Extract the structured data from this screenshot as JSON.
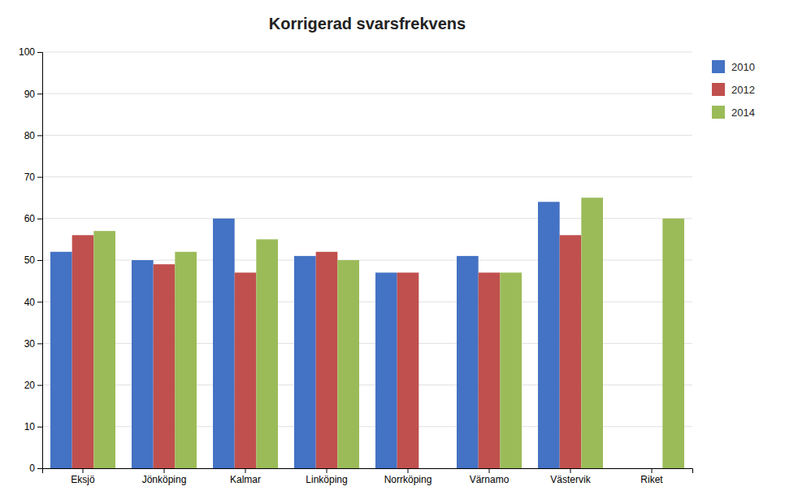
{
  "chart_data": {
    "type": "bar",
    "title": "Korrigerad svarsfrekvens",
    "categories": [
      "Eksjö",
      "Jönköping",
      "Kalmar",
      "Linköping",
      "Norrköping",
      "Värnamo",
      "Västervik",
      "Riket"
    ],
    "series": [
      {
        "name": "2010",
        "color": "#4472C4",
        "values": [
          52,
          50,
          60,
          51,
          47,
          51,
          64,
          null
        ]
      },
      {
        "name": "2012",
        "color": "#C0504D",
        "values": [
          56,
          49,
          47,
          52,
          47,
          47,
          56,
          null
        ]
      },
      {
        "name": "2014",
        "color": "#9BBB59",
        "values": [
          57,
          52,
          55,
          50,
          null,
          47,
          65,
          60
        ]
      }
    ],
    "ylim": [
      0,
      100
    ],
    "yticks": [
      0,
      10,
      20,
      30,
      40,
      50,
      60,
      70,
      80,
      90,
      100
    ],
    "grid": true,
    "legend": "right"
  }
}
